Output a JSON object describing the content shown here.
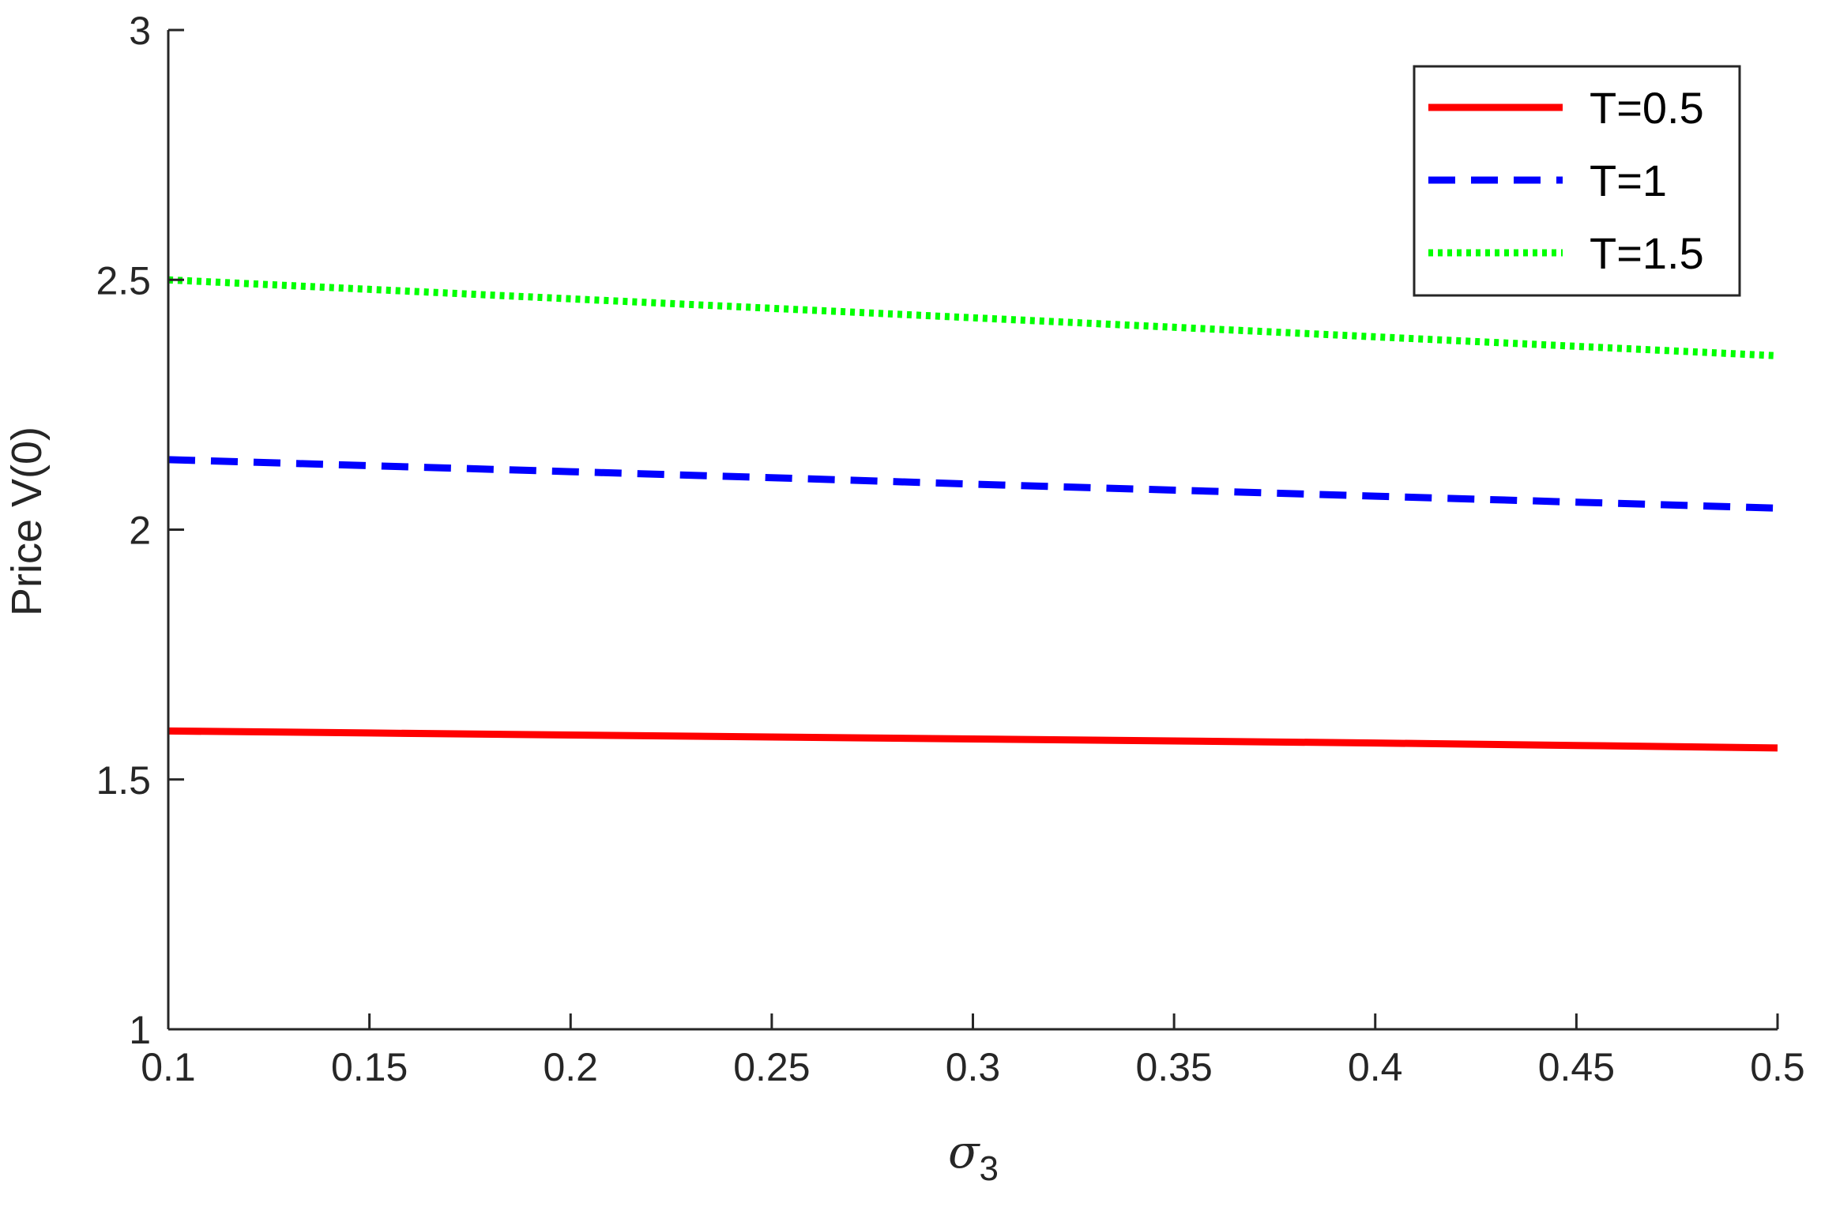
{
  "chart_data": {
    "type": "line",
    "xlabel": {
      "symbol": "σ",
      "subscript": "3"
    },
    "ylabel": "Price V(0)",
    "xlim": [
      0.1,
      0.5
    ],
    "ylim": [
      1,
      3
    ],
    "x_ticks": [
      "0.1",
      "0.15",
      "0.2",
      "0.25",
      "0.3",
      "0.35",
      "0.4",
      "0.45",
      "0.5"
    ],
    "y_ticks": [
      "1",
      "1.5",
      "2",
      "2.5",
      "3"
    ],
    "grid": false,
    "legend_position": "top-right",
    "x": [
      0.1,
      0.15,
      0.2,
      0.25,
      0.3,
      0.35,
      0.4,
      0.45,
      0.5
    ],
    "series": [
      {
        "name": "T=0.5",
        "color": "#ff0000",
        "style": "solid",
        "values": [
          1.597,
          1.593,
          1.589,
          1.585,
          1.581,
          1.577,
          1.573,
          1.568,
          1.563
        ]
      },
      {
        "name": "T=1",
        "color": "#0000ff",
        "style": "dashed",
        "values": [
          2.14,
          2.128,
          2.116,
          2.104,
          2.091,
          2.079,
          2.067,
          2.055,
          2.043
        ]
      },
      {
        "name": "T=1.5",
        "color": "#00ff00",
        "style": "dotted",
        "values": [
          2.5,
          2.481,
          2.462,
          2.443,
          2.424,
          2.405,
          2.386,
          2.367,
          2.348
        ]
      }
    ]
  }
}
